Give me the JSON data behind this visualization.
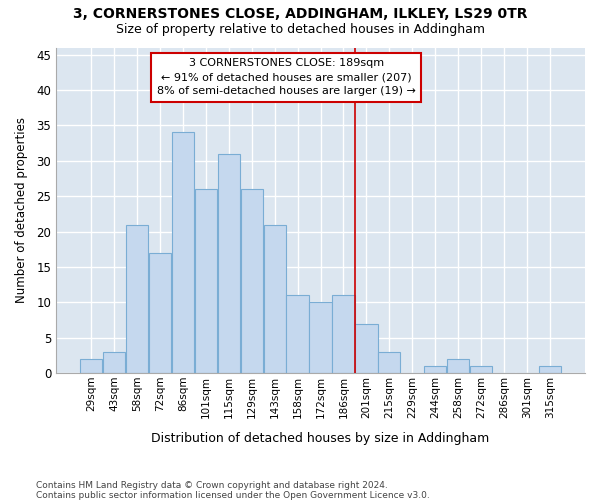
{
  "title1": "3, CORNERSTONES CLOSE, ADDINGHAM, ILKLEY, LS29 0TR",
  "title2": "Size of property relative to detached houses in Addingham",
  "xlabel": "Distribution of detached houses by size in Addingham",
  "ylabel": "Number of detached properties",
  "categories": [
    "29sqm",
    "43sqm",
    "58sqm",
    "72sqm",
    "86sqm",
    "101sqm",
    "115sqm",
    "129sqm",
    "143sqm",
    "158sqm",
    "172sqm",
    "186sqm",
    "201sqm",
    "215sqm",
    "229sqm",
    "244sqm",
    "258sqm",
    "272sqm",
    "286sqm",
    "301sqm",
    "315sqm"
  ],
  "values": [
    2,
    3,
    21,
    17,
    34,
    26,
    31,
    26,
    21,
    11,
    10,
    11,
    7,
    3,
    0,
    1,
    2,
    1,
    0,
    0,
    1
  ],
  "bar_color": "#c5d8ee",
  "bar_edge_color": "#7aadd4",
  "background_color": "#dce6f0",
  "grid_color": "#ffffff",
  "fig_background": "#ffffff",
  "ylim": [
    0,
    46
  ],
  "yticks": [
    0,
    5,
    10,
    15,
    20,
    25,
    30,
    35,
    40,
    45
  ],
  "vline_x": 11.5,
  "annotation_line1": "3 CORNERSTONES CLOSE: 189sqm",
  "annotation_line2": "← 91% of detached houses are smaller (207)",
  "annotation_line3": "8% of semi-detached houses are larger (19) →",
  "footnote1": "Contains HM Land Registry data © Crown copyright and database right 2024.",
  "footnote2": "Contains public sector information licensed under the Open Government Licence v3.0."
}
